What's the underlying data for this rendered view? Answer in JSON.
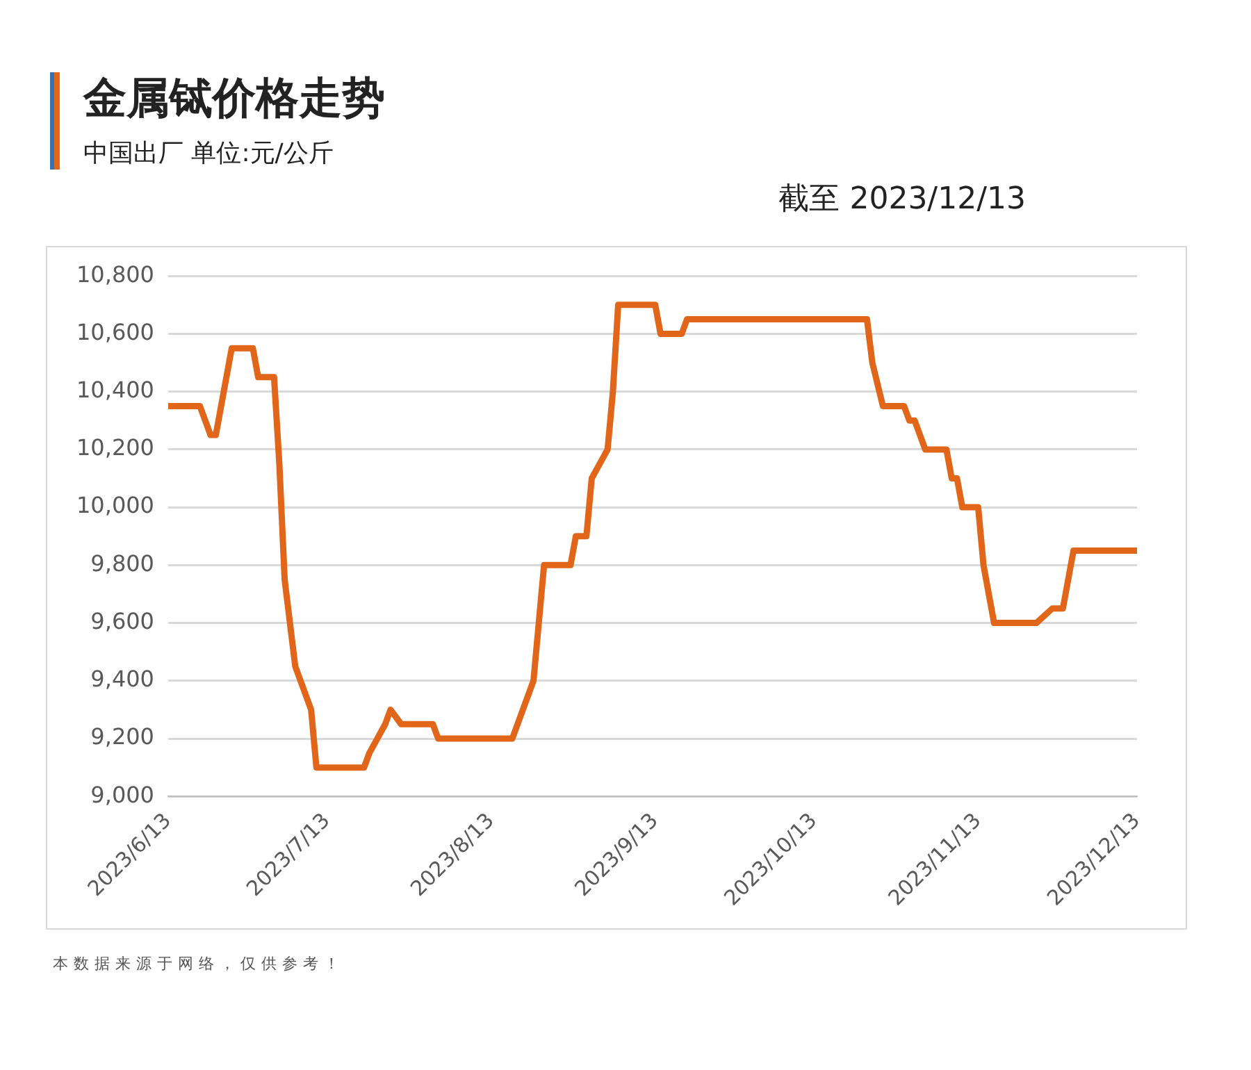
{
  "chart_data": {
    "type": "line",
    "title": "金属铽价格走势",
    "subtitle": "中国出厂  单位:元/公斤",
    "annotations": [
      "截至 2023/12/13",
      "本数据来源于网络，仅供参考！"
    ],
    "x": [
      "2023-06-13",
      "2023-06-19",
      "2023-06-21",
      "2023-06-22",
      "2023-06-25",
      "2023-06-29",
      "2023-06-30",
      "2023-07-03",
      "2023-07-04",
      "2023-07-05",
      "2023-07-07",
      "2023-07-10",
      "2023-07-11",
      "2023-07-20",
      "2023-07-21",
      "2023-07-24",
      "2023-07-25",
      "2023-07-27",
      "2023-08-02",
      "2023-08-03",
      "2023-08-17",
      "2023-08-21",
      "2023-08-22",
      "2023-08-23",
      "2023-08-28",
      "2023-08-29",
      "2023-08-31",
      "2023-09-01",
      "2023-09-04",
      "2023-09-05",
      "2023-09-06",
      "2023-09-13",
      "2023-09-14",
      "2023-09-18",
      "2023-09-19",
      "2023-10-23",
      "2023-10-24",
      "2023-10-26",
      "2023-10-30",
      "2023-10-31",
      "2023-11-01",
      "2023-11-03",
      "2023-11-07",
      "2023-11-08",
      "2023-11-09",
      "2023-11-10",
      "2023-11-13",
      "2023-11-14",
      "2023-11-16",
      "2023-11-24",
      "2023-11-27",
      "2023-11-29",
      "2023-12-01",
      "2023-12-13"
    ],
    "series": [
      {
        "color": "#e2661a",
        "values": [
          10350,
          10350,
          10250,
          10250,
          10550,
          10550,
          10450,
          10450,
          10150,
          9750,
          9450,
          9300,
          9100,
          9100,
          9150,
          9250,
          9300,
          9250,
          9250,
          9200,
          9200,
          9400,
          9600,
          9800,
          9800,
          9900,
          9900,
          10100,
          10200,
          10400,
          10700,
          10700,
          10600,
          10600,
          10650,
          10650,
          10500,
          10350,
          10350,
          10300,
          10300,
          10200,
          10200,
          10100,
          10100,
          10000,
          10000,
          9800,
          9600,
          9600,
          9650,
          9650,
          9850,
          9850
        ]
      }
    ],
    "xlim": [
      "2023-06-13",
      "2023-12-13"
    ],
    "xticks": [
      {
        "value": "2023-06-13",
        "label": "2023/6/13"
      },
      {
        "value": "2023-07-13",
        "label": "2023/7/13"
      },
      {
        "value": "2023-08-13",
        "label": "2023/8/13"
      },
      {
        "value": "2023-09-13",
        "label": "2023/9/13"
      },
      {
        "value": "2023-10-13",
        "label": "2023/10/13"
      },
      {
        "value": "2023-11-13",
        "label": "2023/11/13"
      },
      {
        "value": "2023-12-13",
        "label": "2023/12/13"
      }
    ],
    "ylim": [
      9000,
      10800
    ],
    "yticks": [
      {
        "value": 9000,
        "label": "9,000"
      },
      {
        "value": 9200,
        "label": "9,200"
      },
      {
        "value": 9400,
        "label": "9,400"
      },
      {
        "value": 9600,
        "label": "9,600"
      },
      {
        "value": 9800,
        "label": "9,800"
      },
      {
        "value": 10000,
        "label": "10,000"
      },
      {
        "value": 10200,
        "label": "10,200"
      },
      {
        "value": 10400,
        "label": "10,400"
      },
      {
        "value": 10600,
        "label": "10,600"
      },
      {
        "value": 10800,
        "label": "10,800"
      }
    ],
    "grid": "y",
    "legend": false,
    "marker": "none",
    "line_style": "solid"
  }
}
